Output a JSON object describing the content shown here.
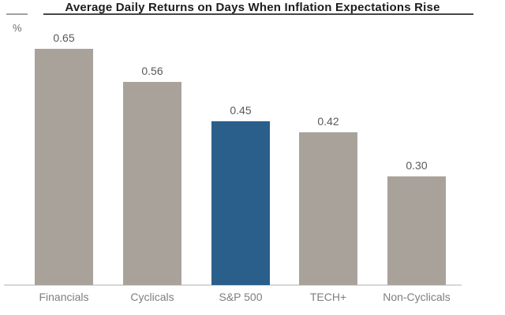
{
  "header": {
    "title": "Average Daily Returns on Days When Inflation Expectations Rise",
    "unit_label": "%"
  },
  "chart_data": {
    "type": "bar",
    "title": "Average Daily Returns on Days When Inflation Expectations Rise",
    "categories": [
      "Financials",
      "Cyclicals",
      "S&P 500",
      "TECH+",
      "Non-Cyclicals"
    ],
    "values": [
      0.65,
      0.56,
      0.45,
      0.42,
      0.3
    ],
    "value_labels": [
      "0.65",
      "0.56",
      "0.45",
      "0.42",
      "0.30"
    ],
    "xlabel": "",
    "ylabel": "%",
    "ylim": [
      0,
      0.7
    ],
    "grid": false,
    "legend": false,
    "highlight_index": 2,
    "colors": {
      "bar": "#A9A29B",
      "highlight": "#2A5F8C",
      "axis_line": "#DAD7D5",
      "value_label_text": "#595959",
      "category_label_text": "#7E7E7E",
      "title_text": "#1D1D1D"
    }
  }
}
